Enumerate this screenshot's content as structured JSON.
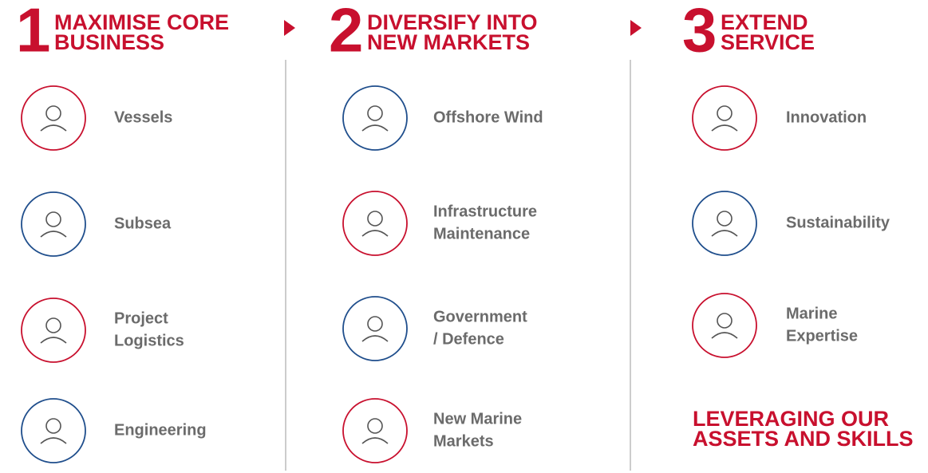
{
  "columns": [
    {
      "number": "1",
      "title": [
        "MAXIMISE CORE",
        "BUSINESS"
      ],
      "items": [
        {
          "label": [
            "Vessels"
          ],
          "color": "#c8102e"
        },
        {
          "label": [
            "Subsea"
          ],
          "color": "#1f4e8c"
        },
        {
          "label": [
            "Project",
            "Logistics"
          ],
          "color": "#c8102e"
        },
        {
          "label": [
            "Engineering"
          ],
          "color": "#1f4e8c"
        }
      ]
    },
    {
      "number": "2",
      "title": [
        "DIVERSIFY INTO",
        "NEW MARKETS"
      ],
      "items": [
        {
          "label": [
            "Offshore Wind"
          ],
          "color": "#1f4e8c"
        },
        {
          "label": [
            "Infrastructure",
            "Maintenance"
          ],
          "color": "#c8102e"
        },
        {
          "label": [
            "Government",
            "/ Defence"
          ],
          "color": "#1f4e8c"
        },
        {
          "label": [
            "New Marine",
            "Markets"
          ],
          "color": "#c8102e"
        }
      ]
    },
    {
      "number": "3",
      "title": [
        "EXTEND",
        "SERVICE"
      ],
      "items": [
        {
          "label": [
            "Innovation"
          ],
          "color": "#c8102e"
        },
        {
          "label": [
            "Sustainability"
          ],
          "color": "#1f4e8c"
        },
        {
          "label": [
            "Marine",
            "Expertise"
          ],
          "color": "#c8102e"
        }
      ]
    }
  ],
  "footer": [
    "LEVERAGING OUR",
    "ASSETS AND SKILLS"
  ]
}
